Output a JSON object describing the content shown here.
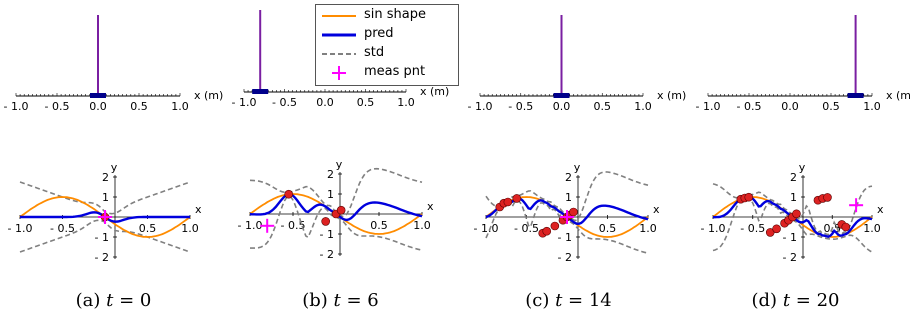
{
  "panels": [
    {
      "caption_prefix": "(a) ",
      "caption_var": "t",
      "caption_value": " = 0"
    },
    {
      "caption_prefix": "(b) ",
      "caption_var": "t",
      "caption_value": " = 6"
    },
    {
      "caption_prefix": "(c) ",
      "caption_var": "t",
      "caption_value": " = 14"
    },
    {
      "caption_prefix": "(d) ",
      "caption_var": "t",
      "caption_value": " = 20"
    }
  ],
  "legend": {
    "items": [
      {
        "label": "sin shape",
        "color": "#ff8c00",
        "style": "solid"
      },
      {
        "label": "pred",
        "color": "#0000dd",
        "style": "solid"
      },
      {
        "label": "std",
        "color": "#808080",
        "style": "dashed"
      },
      {
        "label": "meas pnt",
        "color": "#ff00ff",
        "style": "plus"
      }
    ]
  },
  "chart_data": [
    {
      "type": "line",
      "kind": "position",
      "xlabel": "x (m)",
      "xlim": [
        -1.0,
        1.0
      ],
      "ticks": [
        "- 1.0",
        "- 0.5",
        "0.0",
        "0.5",
        "1.0"
      ],
      "panels": [
        {
          "bar_x": 0.0
        },
        {
          "bar_x": -0.8
        },
        {
          "bar_x": 0.0
        },
        {
          "bar_x": 0.8
        }
      ],
      "bar_color": "#7a1fa2",
      "marker_color": "#00008b"
    },
    {
      "type": "line",
      "kind": "function",
      "xlabel": "x",
      "ylabel": "y",
      "xlim": [
        -1.0,
        1.0
      ],
      "ylim": [
        -2,
        2
      ],
      "xticks": [
        "- 1.0",
        "- 0.5",
        "0.5",
        "1.0"
      ],
      "yticks": [
        "2",
        "1",
        "- 1",
        "- 2"
      ],
      "series": [
        {
          "name": "sin shape",
          "color": "#ff8c00"
        },
        {
          "name": "pred",
          "color": "#0000dd"
        },
        {
          "name": "std",
          "color": "#808080"
        }
      ],
      "true_function": "-sin(pi*x)",
      "panels": [
        {
          "meas_point": [
            0.0,
            0.0
          ],
          "samples": [
            [
              0.0,
              0.0
            ]
          ]
        },
        {
          "meas_point": [
            -0.8,
            -0.59
          ],
          "samples": [
            [
              -0.55,
              0.99
            ],
            [
              -0.12,
              -0.37
            ],
            [
              0.0,
              0.0
            ],
            [
              0.06,
              0.19
            ]
          ]
        },
        {
          "meas_point": [
            0.0,
            0.0
          ],
          "samples": [
            [
              -0.83,
              0.5
            ],
            [
              -0.78,
              0.69
            ],
            [
              -0.73,
              0.75
            ],
            [
              -0.62,
              0.93
            ],
            [
              -0.3,
              -0.81
            ],
            [
              -0.25,
              -0.71
            ],
            [
              -0.15,
              -0.45
            ],
            [
              -0.05,
              -0.16
            ],
            [
              0.0,
              0.0
            ],
            [
              0.03,
              0.09
            ],
            [
              0.08,
              0.25
            ]
          ]
        },
        {
          "meas_point": [
            0.8,
            0.59
          ],
          "samples": [
            [
              -0.65,
              0.89
            ],
            [
              -0.6,
              0.95
            ],
            [
              -0.55,
              0.99
            ],
            [
              -0.28,
              -0.77
            ],
            [
              -0.2,
              -0.59
            ],
            [
              -0.1,
              -0.31
            ],
            [
              -0.05,
              -0.16
            ],
            [
              0.0,
              0.0
            ],
            [
              0.05,
              0.16
            ],
            [
              0.32,
              0.84
            ],
            [
              0.38,
              0.93
            ],
            [
              0.44,
              0.98
            ],
            [
              0.62,
              -0.37
            ],
            [
              0.67,
              -0.5
            ]
          ]
        }
      ]
    }
  ]
}
